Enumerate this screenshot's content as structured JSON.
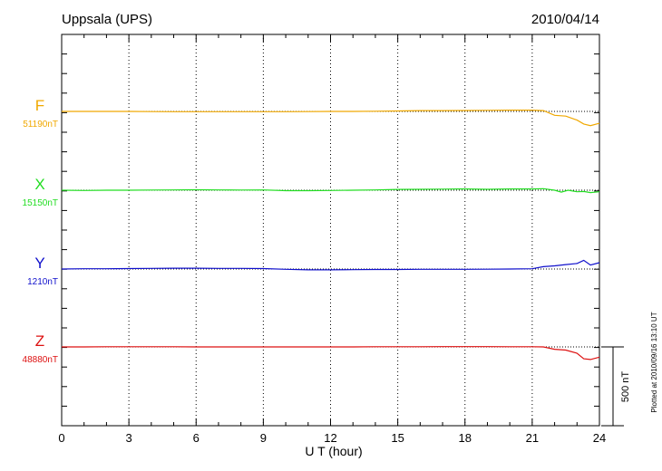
{
  "header": {
    "station": "Uppsala (UPS)",
    "date": "2010/04/14"
  },
  "footer": {
    "plotted_note": "Plotted at 2010/09/16 13:10 UT"
  },
  "scale_bar": {
    "label": "500 nT",
    "value": 500
  },
  "colors": {
    "F": "#f0a800",
    "X": "#22dd22",
    "Y": "#1010cc",
    "Z": "#dd1010",
    "axis": "#000000",
    "grid": "#000000"
  },
  "chart_data": {
    "type": "line",
    "title": "Uppsala (UPS)",
    "xlabel": "U T (hour)",
    "ylabel": "",
    "x_ticks": [
      "0",
      "3",
      "6",
      "9",
      "12",
      "15",
      "18",
      "21",
      "24"
    ],
    "xlim": [
      0,
      24
    ],
    "grid": "dotted vertical at every 3 h; dotted baseline per component",
    "scale_nT_per_bar": 500,
    "series": [
      {
        "name": "F",
        "baseline_label": "51190nT",
        "baseline": 51190,
        "x": [
          0,
          1,
          2,
          3,
          4,
          5,
          6,
          7,
          8,
          9,
          10,
          11,
          12,
          13,
          14,
          15,
          16,
          17,
          18,
          19,
          20,
          21,
          21.5,
          22,
          22.5,
          23,
          23.3,
          23.6,
          24
        ],
        "y": [
          51190,
          51190,
          51190,
          51190,
          51189,
          51188,
          51188,
          51188,
          51188,
          51188,
          51188,
          51189,
          51190,
          51190,
          51191,
          51193,
          51195,
          51195,
          51196,
          51197,
          51198,
          51198,
          51195,
          51165,
          51160,
          51135,
          51110,
          51100,
          51115
        ]
      },
      {
        "name": "X",
        "baseline_label": "15150nT",
        "baseline": 15150,
        "x": [
          0,
          1,
          2,
          3,
          4,
          5,
          6,
          7,
          8,
          9,
          10,
          11,
          12,
          13,
          14,
          15,
          16,
          17,
          18,
          19,
          20,
          21,
          21.5,
          22,
          22.3,
          22.6,
          23,
          23.3,
          23.6,
          24
        ],
        "y": [
          15150,
          15148,
          15150,
          15150,
          15151,
          15152,
          15153,
          15152,
          15151,
          15152,
          15147,
          15147,
          15148,
          15150,
          15152,
          15155,
          15156,
          15157,
          15158,
          15156,
          15158,
          15158,
          15160,
          15150,
          15138,
          15150,
          15140,
          15142,
          15135,
          15140
        ]
      },
      {
        "name": "Y",
        "baseline_label": "1210nT",
        "baseline": 1210,
        "x": [
          0,
          1,
          2,
          3,
          4,
          5,
          6,
          7,
          8,
          9,
          10,
          11,
          12,
          13,
          14,
          15,
          16,
          17,
          18,
          19,
          20,
          21,
          21.5,
          22,
          22.5,
          23,
          23.3,
          23.6,
          24
        ],
        "y": [
          1210,
          1212,
          1212,
          1213,
          1214,
          1215,
          1215,
          1214,
          1214,
          1213,
          1208,
          1205,
          1205,
          1206,
          1207,
          1207,
          1208,
          1208,
          1208,
          1209,
          1210,
          1212,
          1225,
          1230,
          1238,
          1245,
          1265,
          1235,
          1250
        ]
      },
      {
        "name": "Z",
        "baseline_label": "48880nT",
        "baseline": 48880,
        "x": [
          0,
          1,
          2,
          3,
          4,
          5,
          6,
          7,
          8,
          9,
          10,
          11,
          12,
          13,
          14,
          15,
          16,
          17,
          18,
          19,
          20,
          21,
          21.5,
          22,
          22.5,
          23,
          23.3,
          23.6,
          24
        ],
        "y": [
          48880,
          48880,
          48881,
          48881,
          48881,
          48881,
          48880,
          48880,
          48880,
          48880,
          48880,
          48880,
          48880,
          48880,
          48881,
          48881,
          48881,
          48882,
          48882,
          48882,
          48881,
          48881,
          48880,
          48865,
          48860,
          48840,
          48805,
          48800,
          48815
        ]
      }
    ]
  }
}
